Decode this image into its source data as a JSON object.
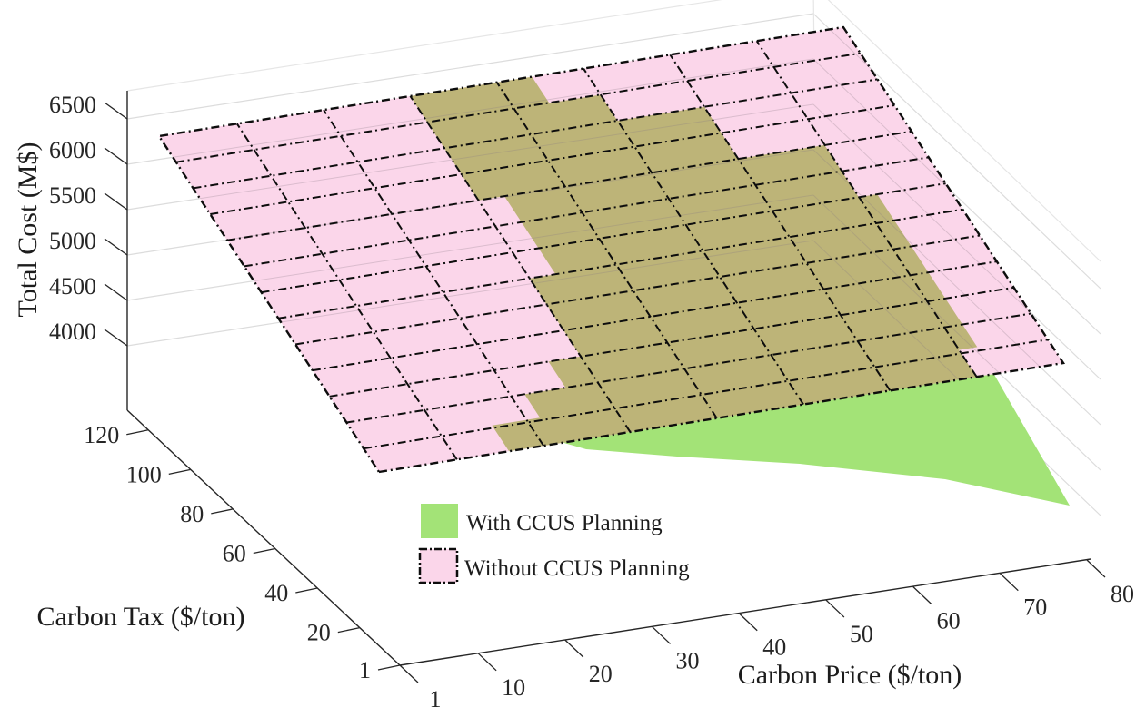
{
  "figure": {
    "background": "#ffffff",
    "description": "3D surface plot comparing total planning cost with and without CCUS planning versus carbon price and carbon tax"
  },
  "chart_data": {
    "type": "surface",
    "title": "",
    "xlabel": "Carbon Price ($/ton)",
    "x_ticks": [
      1,
      10,
      20,
      30,
      40,
      50,
      60,
      70,
      80
    ],
    "x_range": [
      1,
      80
    ],
    "ylabel": "Carbon Tax ($/ton)",
    "y_ticks": [
      1,
      20,
      40,
      60,
      80,
      100,
      120
    ],
    "y_range": [
      1,
      130
    ],
    "zlabel": "Total Cost (M$)",
    "z_ticks": [
      4000,
      4500,
      5000,
      5500,
      6000,
      6500
    ],
    "grid": "on",
    "legend_position": "lower-center-left inside figure",
    "series": [
      {
        "name": "With CCUS Planning",
        "color": "#A3E377",
        "surface_style": "solid, no mesh",
        "description": "Lower-cost surface; cost decreases as carbon price rises, dipping to about 3800 M$ near carbon price 80 and carbon tax 1. Visible directly at the front-right wedge and as the olive tinted overlap seen through the semi-transparent pink plane in the middle of the domain.",
        "corner_values_est": {
          "price80_tax1": 3800
        }
      },
      {
        "name": "Without CCUS Planning",
        "color": "#FBD6EA",
        "surface_style": "semi-transparent with black dash-dot mesh",
        "description": "Near-planar surface almost independent of carbon price; total cost is about 5300 M$ at carbon tax 1 rising to about 6150 M$ at carbon tax 130.",
        "corner_values_est": {
          "price1_tax1": 5290,
          "price80_tax1": 5330,
          "price1_tax130": 6150,
          "price80_tax130": 6170
        }
      }
    ],
    "overlap_tint": "#BDB478",
    "mesh_color": "#0d0d0d",
    "wall_grid_color": "#dcdcdc"
  },
  "legend": {
    "items": [
      {
        "label": "With CCUS Planning",
        "color": "#A3E377",
        "border": "none"
      },
      {
        "label": "Without CCUS Planning",
        "color": "#FBD6EA",
        "border": "black dash-dot"
      }
    ]
  }
}
